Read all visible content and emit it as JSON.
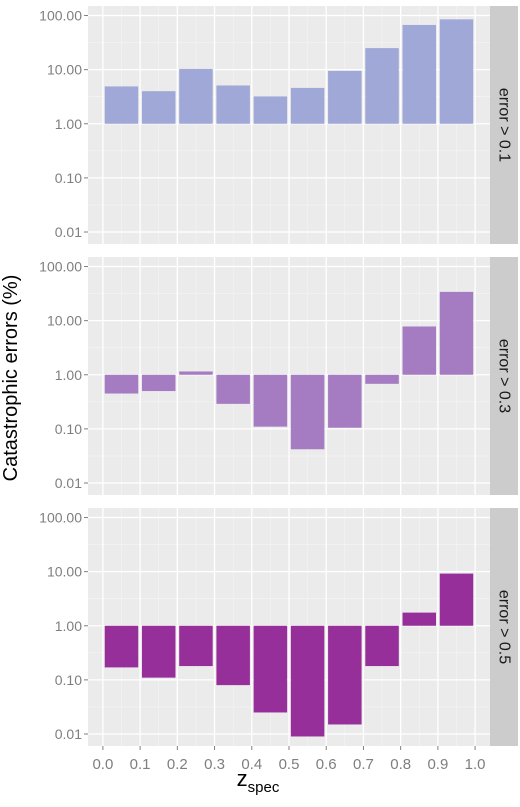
{
  "chart_data": {
    "type": "bar",
    "ylabel": "Catastrophic errors (%)",
    "xlabel": "z",
    "xlabel_sub": "spec",
    "y_scale": "log",
    "ylim": [
      0.006,
      150
    ],
    "baseline": 1.0,
    "xlim": [
      -0.04,
      1.04
    ],
    "x_ticks": [
      "0.0",
      "0.1",
      "0.2",
      "0.3",
      "0.4",
      "0.5",
      "0.6",
      "0.7",
      "0.8",
      "0.9",
      "1.0"
    ],
    "y_ticks": [
      "0.01",
      "0.10",
      "1.00",
      "10.00",
      "100.00"
    ],
    "grid": true,
    "bin_edges": [
      0.0,
      0.1,
      0.2,
      0.3,
      0.4,
      0.5,
      0.6,
      0.7,
      0.8,
      0.9,
      1.0
    ],
    "panels": [
      {
        "label": "error > 0.1",
        "color": "#9fa8d6",
        "values": [
          4.9,
          4.0,
          10.3,
          5.1,
          3.2,
          4.6,
          9.5,
          25,
          67,
          85
        ]
      },
      {
        "label": "error > 0.3",
        "color": "#a57cc2",
        "values": [
          0.45,
          0.5,
          1.15,
          0.29,
          0.11,
          0.042,
          0.105,
          0.68,
          7.8,
          34
        ]
      },
      {
        "label": "error > 0.5",
        "color": "#962f9a",
        "values": [
          0.17,
          0.11,
          0.18,
          0.08,
          0.025,
          0.009,
          0.015,
          0.18,
          1.75,
          9.2
        ]
      }
    ]
  }
}
